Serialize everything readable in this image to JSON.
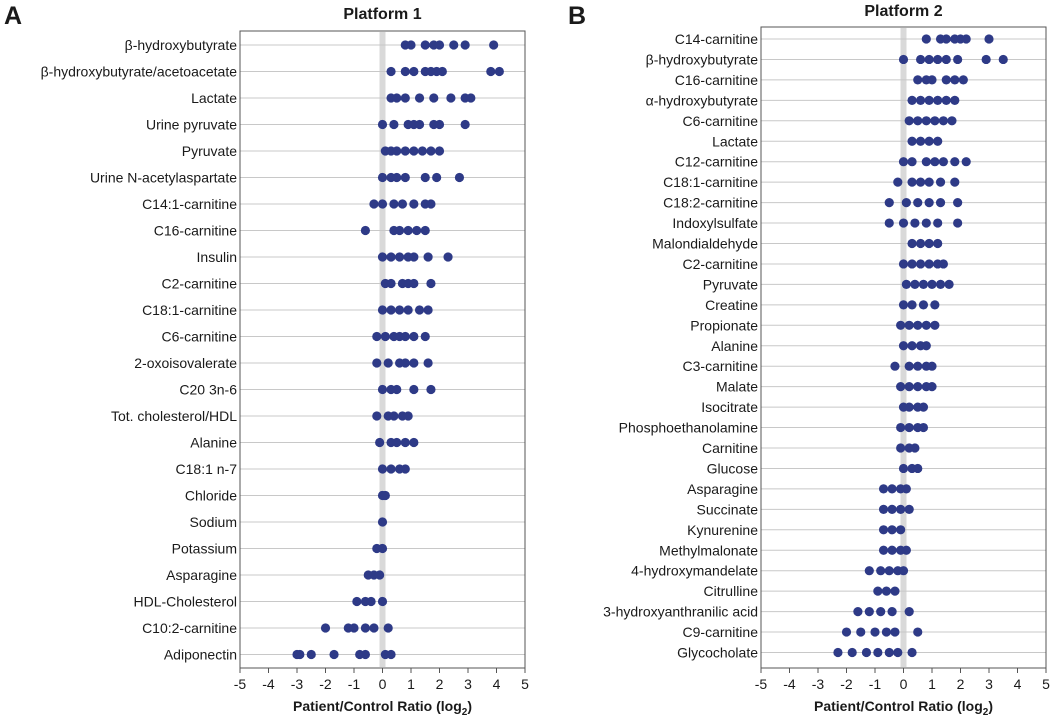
{
  "chart_data": [
    {
      "type": "scatter",
      "panel_label": "A",
      "title": "Platform 1",
      "xlabel_main": "Patient/Control Ratio (log",
      "xlabel_sub": "2",
      "xlabel_close": ")",
      "xlim": [
        -5,
        5
      ],
      "xticks": [
        "-5",
        "-4",
        "-3",
        "-2",
        "-1",
        "0",
        "1",
        "2",
        "3",
        "4",
        "5"
      ],
      "grid": "horizontal",
      "categories": [
        "β-hydroxybutyrate",
        "β-hydroxybutyrate/acetoacetate",
        "Lactate",
        "Urine pyruvate",
        "Pyruvate",
        "Urine N-acetylaspartate",
        "C14:1-carnitine",
        "C16-carnitine",
        "Insulin",
        "C2-carnitine",
        "C18:1-carnitine",
        "C6-carnitine",
        "2-oxoisovalerate",
        "C20 3n-6",
        "Tot. cholesterol/HDL",
        "Alanine",
        "C18:1 n-7",
        "Chloride",
        "Sodium",
        "Potassium",
        "Asparagine",
        "HDL-Cholesterol",
        "C10:2-carnitine",
        "Adiponectin"
      ],
      "values": [
        [
          0.8,
          1.0,
          1.5,
          1.8,
          2.0,
          2.5,
          2.9,
          3.9
        ],
        [
          0.3,
          0.8,
          1.1,
          1.5,
          1.7,
          1.9,
          2.1,
          3.8,
          4.1
        ],
        [
          0.3,
          0.5,
          0.8,
          1.3,
          1.8,
          2.4,
          2.9,
          3.1
        ],
        [
          0.0,
          0.4,
          0.9,
          1.1,
          1.3,
          1.8,
          2.0,
          2.9
        ],
        [
          0.1,
          0.3,
          0.5,
          0.8,
          1.1,
          1.4,
          1.7,
          2.0
        ],
        [
          0.0,
          0.3,
          0.5,
          0.8,
          1.5,
          1.9,
          2.7
        ],
        [
          -0.3,
          0.0,
          0.4,
          0.7,
          1.1,
          1.5,
          1.7
        ],
        [
          -0.6,
          0.4,
          0.6,
          0.9,
          1.2,
          1.5
        ],
        [
          0.0,
          0.3,
          0.6,
          0.9,
          1.1,
          1.6,
          2.3
        ],
        [
          0.1,
          0.3,
          0.7,
          0.9,
          1.1,
          1.7
        ],
        [
          0.0,
          0.3,
          0.6,
          0.9,
          1.3,
          1.6
        ],
        [
          -0.2,
          0.1,
          0.4,
          0.6,
          0.8,
          1.1,
          1.5
        ],
        [
          -0.2,
          0.2,
          0.6,
          0.8,
          1.1,
          1.6
        ],
        [
          0.0,
          0.3,
          0.5,
          1.1,
          1.7
        ],
        [
          -0.2,
          0.2,
          0.4,
          0.7,
          0.9
        ],
        [
          -0.1,
          0.3,
          0.5,
          0.8,
          1.1
        ],
        [
          0.0,
          0.3,
          0.6,
          0.8
        ],
        [
          0.0,
          0.1
        ],
        [
          0.0
        ],
        [
          -0.2,
          0.0
        ],
        [
          -0.5,
          -0.3,
          -0.1
        ],
        [
          -0.9,
          -0.6,
          -0.4,
          0.0
        ],
        [
          -2.0,
          -1.2,
          -1.0,
          -0.6,
          -0.3,
          0.2
        ],
        [
          -3.0,
          -2.9,
          -2.5,
          -1.7,
          -0.8,
          -0.6,
          0.1,
          0.3
        ]
      ]
    },
    {
      "type": "scatter",
      "panel_label": "B",
      "title": "Platform 2",
      "xlabel_main": "Patient/Control Ratio (log",
      "xlabel_sub": "2",
      "xlabel_close": ")",
      "xlim": [
        -5,
        5
      ],
      "xticks": [
        "-5",
        "-4",
        "-3",
        "-2",
        "-1",
        "0",
        "1",
        "2",
        "3",
        "4",
        "5"
      ],
      "grid": "horizontal",
      "categories": [
        "C14-carnitine",
        "β-hydroxybutyrate",
        "C16-carnitine",
        "α-hydroxybutyrate",
        "C6-carnitine",
        "Lactate",
        "C12-carnitine",
        "C18:1-carnitine",
        "C18:2-carnitine",
        "Indoxylsulfate",
        "Malondialdehyde",
        "C2-carnitine",
        "Pyruvate",
        "Creatine",
        "Propionate",
        "Alanine",
        "C3-carnitine",
        "Malate",
        "Isocitrate",
        "Phosphoethanolamine",
        "Carnitine",
        "Glucose",
        "Asparagine",
        "Succinate",
        "Kynurenine",
        "Methylmalonate",
        "4-hydroxymandelate",
        "Citrulline",
        "3-hydroxyanthranilic acid",
        "C9-carnitine",
        "Glycocholate"
      ],
      "values": [
        [
          0.8,
          1.3,
          1.5,
          1.8,
          2.0,
          2.2,
          3.0
        ],
        [
          0.0,
          0.6,
          0.9,
          1.2,
          1.5,
          1.9,
          2.9,
          3.5
        ],
        [
          0.5,
          0.8,
          1.0,
          1.5,
          1.8,
          2.1
        ],
        [
          0.3,
          0.6,
          0.9,
          1.2,
          1.5,
          1.8
        ],
        [
          0.2,
          0.5,
          0.8,
          1.1,
          1.4,
          1.7
        ],
        [
          0.3,
          0.6,
          0.9,
          1.2
        ],
        [
          0.0,
          0.3,
          0.8,
          1.1,
          1.4,
          1.8,
          2.2
        ],
        [
          -0.2,
          0.3,
          0.6,
          0.9,
          1.3,
          1.8
        ],
        [
          -0.5,
          0.1,
          0.5,
          0.9,
          1.3,
          1.9
        ],
        [
          -0.5,
          0.0,
          0.4,
          0.8,
          1.2,
          1.9
        ],
        [
          0.3,
          0.6,
          0.9,
          1.2
        ],
        [
          0.0,
          0.3,
          0.6,
          0.9,
          1.2,
          1.4
        ],
        [
          0.1,
          0.4,
          0.7,
          1.0,
          1.3,
          1.6
        ],
        [
          0.0,
          0.3,
          0.7,
          1.1
        ],
        [
          -0.1,
          0.2,
          0.5,
          0.8,
          1.1
        ],
        [
          0.0,
          0.3,
          0.6,
          0.8
        ],
        [
          -0.3,
          0.2,
          0.5,
          0.8,
          1.0
        ],
        [
          -0.1,
          0.2,
          0.5,
          0.8,
          1.0
        ],
        [
          0.0,
          0.2,
          0.5,
          0.7
        ],
        [
          -0.1,
          0.2,
          0.5,
          0.7
        ],
        [
          -0.1,
          0.2,
          0.4
        ],
        [
          0.0,
          0.3,
          0.5
        ],
        [
          -0.7,
          -0.4,
          -0.1,
          0.1
        ],
        [
          -0.7,
          -0.4,
          -0.1,
          0.2
        ],
        [
          -0.7,
          -0.4,
          -0.1
        ],
        [
          -0.7,
          -0.4,
          -0.1,
          0.1
        ],
        [
          -1.2,
          -0.8,
          -0.5,
          -0.2,
          0.0
        ],
        [
          -0.9,
          -0.6,
          -0.3
        ],
        [
          -1.6,
          -1.2,
          -0.8,
          -0.4,
          0.2
        ],
        [
          -2.0,
          -1.5,
          -1.0,
          -0.6,
          -0.3,
          0.5
        ],
        [
          -2.3,
          -1.8,
          -1.3,
          -0.9,
          -0.5,
          -0.2,
          0.3
        ]
      ]
    }
  ],
  "colors": {
    "dot": "#2e3a87",
    "grid": "#c8c8c8",
    "zero_line": "#d9d9d9",
    "frame": "#555555"
  }
}
